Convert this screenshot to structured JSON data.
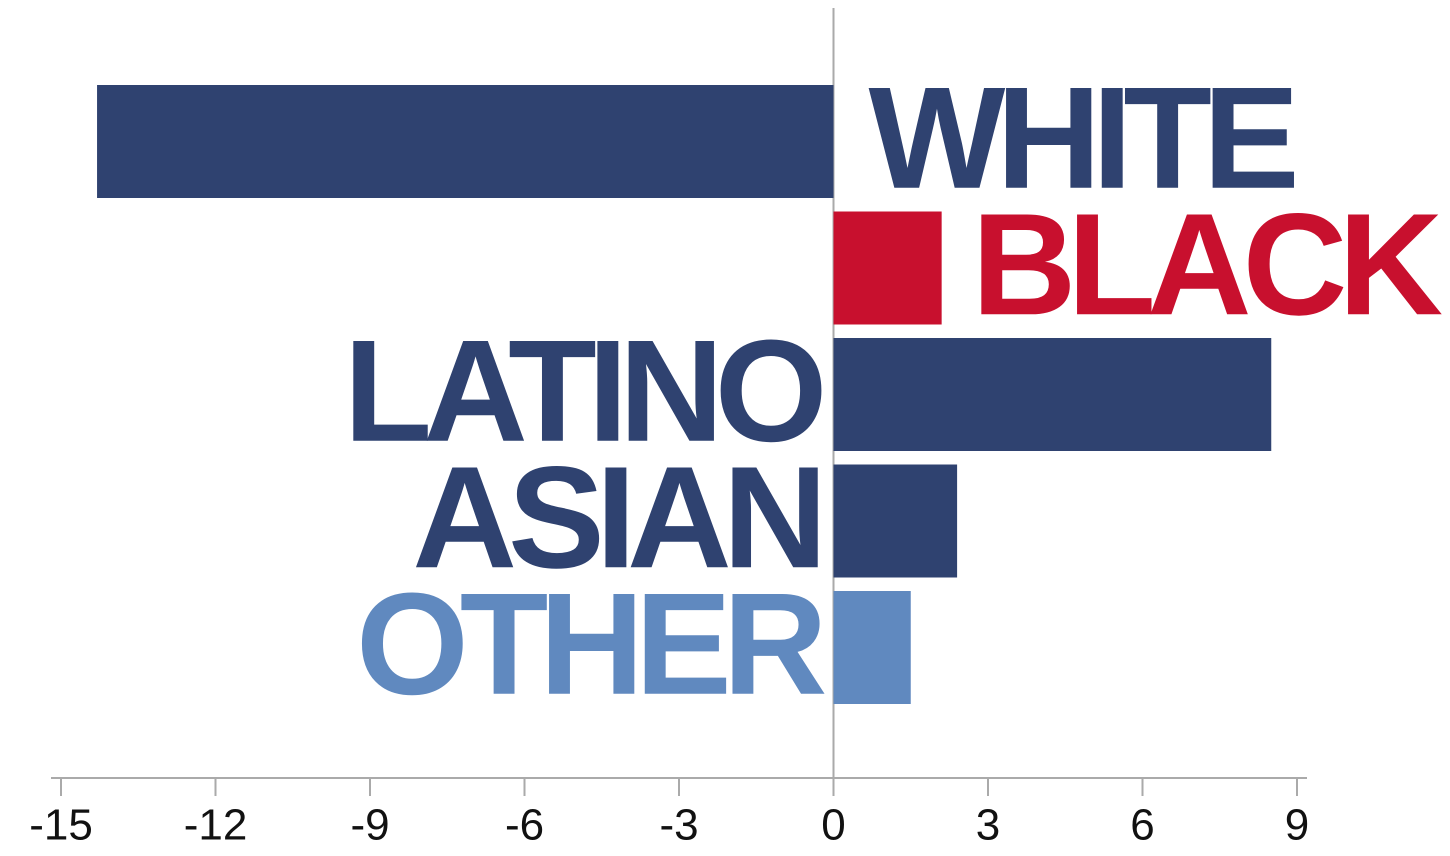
{
  "chart_data": {
    "type": "bar",
    "orientation": "horizontal",
    "categories": [
      "WHITE",
      "BLACK",
      "LATINO",
      "ASIAN",
      "OTHER"
    ],
    "values": [
      -14.3,
      2.1,
      8.5,
      2.4,
      1.5
    ],
    "colors": [
      "#2f4270",
      "#c8102e",
      "#2f4270",
      "#2f4270",
      "#6089bf"
    ],
    "label_positions": [
      "right",
      "end",
      "left",
      "left",
      "left"
    ],
    "xlim": [
      -15,
      9
    ],
    "xticks": [
      -15,
      -12,
      -9,
      -6,
      -3,
      0,
      3,
      6,
      9
    ]
  }
}
